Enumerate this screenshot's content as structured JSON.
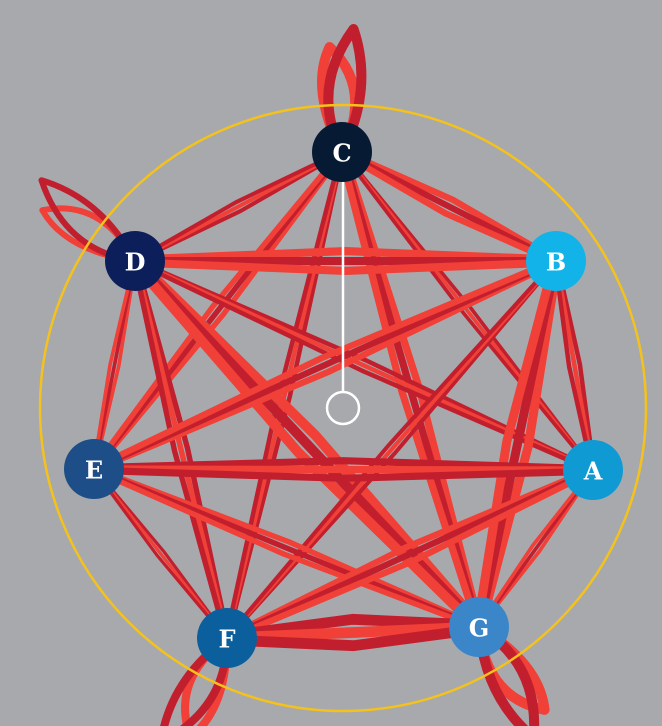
{
  "colors": {
    "background": "#a8a9ad",
    "edge_primary": "#f04037",
    "edge_secondary": "#c21f2e",
    "ring": "#f5c21b",
    "pointer": "#ffffff"
  },
  "nodes": [
    {
      "id": "C",
      "label": "C",
      "color": "#061a33"
    },
    {
      "id": "B",
      "label": "B",
      "color": "#12b3e8"
    },
    {
      "id": "A",
      "label": "A",
      "color": "#0f9ad4"
    },
    {
      "id": "G",
      "label": "G",
      "color": "#3b86c8"
    },
    {
      "id": "F",
      "label": "F",
      "color": "#0b5f9c"
    },
    {
      "id": "E",
      "label": "E",
      "color": "#1d4e87"
    },
    {
      "id": "D",
      "label": "D",
      "color": "#0c1f5a"
    }
  ],
  "edges": [
    {
      "from": "C",
      "to": "B",
      "weight": 14
    },
    {
      "from": "C",
      "to": "A",
      "weight": 8
    },
    {
      "from": "C",
      "to": "G",
      "weight": 16
    },
    {
      "from": "C",
      "to": "F",
      "weight": 10
    },
    {
      "from": "C",
      "to": "E",
      "weight": 12
    },
    {
      "from": "C",
      "to": "D",
      "weight": 9
    },
    {
      "from": "D",
      "to": "B",
      "weight": 18
    },
    {
      "from": "D",
      "to": "A",
      "weight": 10
    },
    {
      "from": "D",
      "to": "G",
      "weight": 22
    },
    {
      "from": "D",
      "to": "F",
      "weight": 12
    },
    {
      "from": "D",
      "to": "E",
      "weight": 8
    },
    {
      "from": "B",
      "to": "A",
      "weight": 10
    },
    {
      "from": "B",
      "to": "E",
      "weight": 14
    },
    {
      "from": "B",
      "to": "F",
      "weight": 9
    },
    {
      "from": "B",
      "to": "G",
      "weight": 20
    },
    {
      "from": "E",
      "to": "A",
      "weight": 16
    },
    {
      "from": "E",
      "to": "G",
      "weight": 12
    },
    {
      "from": "E",
      "to": "F",
      "weight": 7
    },
    {
      "from": "F",
      "to": "A",
      "weight": 14
    },
    {
      "from": "F",
      "to": "G",
      "weight": 24
    },
    {
      "from": "A",
      "to": "G",
      "weight": 8
    }
  ],
  "self_loops": [
    {
      "node": "C",
      "weight": 10
    },
    {
      "node": "D",
      "weight": 6
    },
    {
      "node": "G",
      "weight": 10
    },
    {
      "node": "F",
      "weight": 8
    }
  ]
}
